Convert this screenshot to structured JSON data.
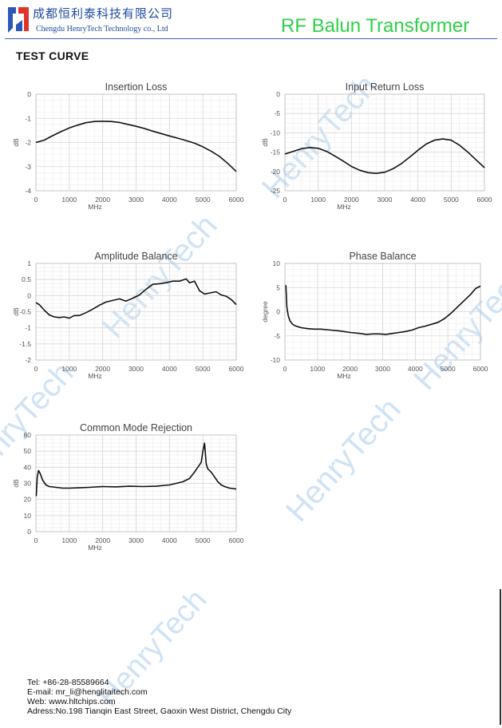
{
  "header": {
    "company_cn": "成都恒利泰科技有限公司",
    "company_en": "Chengdu HenryTech Technology co., Ltd",
    "product_title": "RF Balun Transformer",
    "accent_color": "#2fd04a",
    "brand_color": "#1f4aa0"
  },
  "section_title": "TEST CURVE",
  "watermark": "HenryTech",
  "chart_data": [
    {
      "id": "il",
      "type": "line",
      "title": "Insertion Loss",
      "xlabel": "MHz",
      "ylabel": "dB",
      "xlim": [
        0,
        6000
      ],
      "ylim": [
        -4,
        0
      ],
      "xticks": [
        "0",
        "1000",
        "2000",
        "3000",
        "4000",
        "5000",
        "6000"
      ],
      "yticks": [
        "0",
        "-1",
        "-2",
        "-3",
        "-4"
      ],
      "x": [
        0,
        250,
        500,
        750,
        1000,
        1250,
        1500,
        1750,
        2000,
        2250,
        2500,
        2750,
        3000,
        3250,
        3500,
        3750,
        4000,
        4250,
        4500,
        4750,
        5000,
        5250,
        5500,
        5750,
        6000
      ],
      "y": [
        -2.0,
        -1.9,
        -1.72,
        -1.55,
        -1.4,
        -1.28,
        -1.18,
        -1.13,
        -1.12,
        -1.13,
        -1.17,
        -1.25,
        -1.33,
        -1.42,
        -1.53,
        -1.63,
        -1.73,
        -1.82,
        -1.92,
        -2.03,
        -2.18,
        -2.36,
        -2.58,
        -2.87,
        -3.2
      ]
    },
    {
      "id": "rl",
      "type": "line",
      "title": "Input Return Loss",
      "xlabel": "MHz",
      "ylabel": "dB",
      "xlim": [
        0,
        6000
      ],
      "ylim": [
        -25,
        0
      ],
      "xticks": [
        "0",
        "1000",
        "2000",
        "3000",
        "4000",
        "5000",
        "6000"
      ],
      "yticks": [
        "0",
        "-5",
        "-10",
        "-15",
        "-20",
        "-25"
      ],
      "x": [
        0,
        250,
        500,
        750,
        1000,
        1250,
        1500,
        1750,
        2000,
        2250,
        2500,
        2750,
        3000,
        3250,
        3500,
        3750,
        4000,
        4250,
        4500,
        4750,
        5000,
        5250,
        5500,
        5750,
        6000
      ],
      "y": [
        -15.5,
        -14.8,
        -14.1,
        -13.8,
        -14.0,
        -14.8,
        -16.0,
        -17.3,
        -18.7,
        -19.7,
        -20.3,
        -20.5,
        -20.2,
        -19.3,
        -18.0,
        -16.3,
        -14.5,
        -12.9,
        -11.9,
        -11.6,
        -11.9,
        -13.2,
        -15.0,
        -17.0,
        -19.0
      ]
    },
    {
      "id": "ab",
      "type": "line",
      "title": "Amplitude Balance",
      "xlabel": "MHz",
      "ylabel": "dB",
      "xlim": [
        0,
        6000
      ],
      "ylim": [
        -2,
        1
      ],
      "xticks": [
        "0",
        "1000",
        "2000",
        "3000",
        "4000",
        "5000",
        "6000"
      ],
      "yticks": [
        "1",
        "0.5",
        "0",
        "-0.5",
        "-1",
        "-1.5",
        "-2"
      ],
      "x": [
        0,
        100,
        250,
        400,
        550,
        700,
        850,
        1000,
        1150,
        1300,
        1500,
        1700,
        1900,
        2100,
        2300,
        2500,
        2700,
        2900,
        3100,
        3300,
        3500,
        3700,
        3900,
        4100,
        4300,
        4500,
        4600,
        4750,
        4900,
        5050,
        5200,
        5400,
        5550,
        5700,
        5850,
        6000
      ],
      "y": [
        -0.22,
        -0.28,
        -0.45,
        -0.6,
        -0.66,
        -0.68,
        -0.66,
        -0.7,
        -0.62,
        -0.62,
        -0.53,
        -0.42,
        -0.3,
        -0.2,
        -0.15,
        -0.1,
        -0.17,
        -0.08,
        0.02,
        0.2,
        0.35,
        0.37,
        0.4,
        0.45,
        0.45,
        0.52,
        0.4,
        0.45,
        0.15,
        0.05,
        0.08,
        0.12,
        0.02,
        -0.02,
        -0.12,
        -0.28
      ]
    },
    {
      "id": "pb",
      "type": "line",
      "title": "Phase Balance",
      "xlabel": "MHz",
      "ylabel": "degree",
      "xlim": [
        0,
        6000
      ],
      "ylim": [
        -10,
        10
      ],
      "xticks": [
        "0",
        "1000",
        "2000",
        "3000",
        "4000",
        "5000",
        "6000"
      ],
      "yticks": [
        "10",
        "5",
        "0",
        "-5",
        "-10"
      ],
      "x": [
        30,
        60,
        100,
        150,
        220,
        300,
        400,
        500,
        700,
        900,
        1100,
        1400,
        1700,
        2000,
        2300,
        2500,
        2700,
        2900,
        3100,
        3300,
        3500,
        3700,
        3900,
        4100,
        4300,
        4500,
        4700,
        4900,
        5100,
        5300,
        5500,
        5700,
        5850,
        6000
      ],
      "y": [
        5.5,
        1.0,
        -0.8,
        -1.8,
        -2.5,
        -2.9,
        -3.1,
        -3.3,
        -3.5,
        -3.6,
        -3.6,
        -3.8,
        -4.0,
        -4.3,
        -4.5,
        -4.7,
        -4.6,
        -4.6,
        -4.7,
        -4.5,
        -4.3,
        -4.1,
        -3.8,
        -3.3,
        -3.0,
        -2.6,
        -2.2,
        -1.4,
        -0.3,
        1.0,
        2.3,
        3.6,
        4.8,
        5.3
      ]
    },
    {
      "id": "cmr",
      "type": "line",
      "title": "Common Mode Rejection",
      "xlabel": "MHz",
      "ylabel": "dB",
      "xlim": [
        0,
        6000
      ],
      "ylim": [
        0,
        60
      ],
      "xticks": [
        "0",
        "1000",
        "2000",
        "3000",
        "4000",
        "5000",
        "6000"
      ],
      "yticks": [
        "60",
        "50",
        "40",
        "30",
        "20",
        "10",
        "0"
      ],
      "x": [
        10,
        40,
        80,
        130,
        200,
        300,
        400,
        600,
        800,
        1000,
        1300,
        1600,
        2000,
        2400,
        2800,
        3200,
        3600,
        4000,
        4200,
        4400,
        4600,
        4750,
        4850,
        4950,
        5000,
        5050,
        5100,
        5150,
        5250,
        5350,
        5450,
        5550,
        5650,
        5800,
        6000
      ],
      "y": [
        22,
        34,
        38,
        36,
        32,
        29,
        28,
        27.5,
        27,
        27,
        27.2,
        27.5,
        28,
        27.8,
        28.2,
        28,
        28.2,
        29,
        30,
        31,
        33,
        37,
        40,
        43,
        50,
        55,
        42,
        39,
        37,
        34,
        31,
        29,
        28,
        27,
        26.5
      ]
    }
  ],
  "footer": {
    "tel": "Tel: +86-28-85589664",
    "email": "E-mail: mr_li@henglitaitech.com",
    "web": "Web: www.hltchips.com",
    "address": "Adress:No.198 Tianqin East Street, Gaoxin West District, Chengdu City"
  }
}
